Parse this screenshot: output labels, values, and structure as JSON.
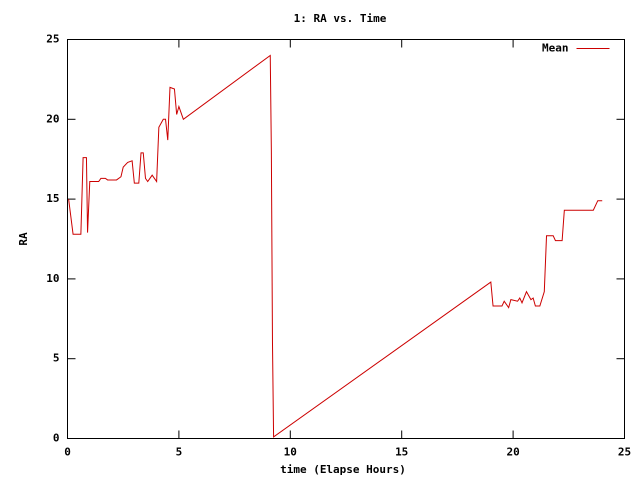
{
  "chart_data": {
    "type": "line",
    "title": "1: RA vs. Time",
    "x_label": "time (Elapse Hours)",
    "y_label": "RA",
    "x": [
      0.05,
      0.25,
      0.6,
      0.7,
      0.85,
      0.9,
      1.0,
      1.4,
      1.5,
      1.7,
      1.8,
      2.2,
      2.4,
      2.5,
      2.7,
      2.9,
      3.0,
      3.2,
      3.3,
      3.4,
      3.5,
      3.6,
      3.8,
      4.0,
      4.1,
      4.3,
      4.4,
      4.5,
      4.6,
      4.8,
      4.9,
      5.0,
      5.2,
      9.1,
      9.15,
      9.2,
      9.25,
      19.0,
      19.1,
      19.5,
      19.6,
      19.8,
      19.9,
      20.2,
      20.3,
      20.4,
      20.6,
      20.8,
      20.9,
      21.0,
      21.2,
      21.4,
      21.5,
      21.8,
      21.9,
      22.2,
      22.3,
      23.6,
      23.8,
      24.0
    ],
    "series": [
      {
        "name": "Mean",
        "color": "#cc0000",
        "values": [
          15,
          12.8,
          12.8,
          17.6,
          17.6,
          12.9,
          16.1,
          16.1,
          16.3,
          16.3,
          16.2,
          16.2,
          16.4,
          17.0,
          17.3,
          17.4,
          16.0,
          16.0,
          17.9,
          17.9,
          16.3,
          16.1,
          16.5,
          16.1,
          19.5,
          20.0,
          20.0,
          18.7,
          22.0,
          21.9,
          20.3,
          20.8,
          20.0,
          24.0,
          18,
          6,
          0.1,
          9.8,
          8.3,
          8.3,
          8.6,
          8.2,
          8.7,
          8.6,
          8.8,
          8.5,
          9.2,
          8.7,
          8.8,
          8.3,
          8.3,
          9.2,
          12.7,
          12.7,
          12.4,
          12.4,
          14.3,
          14.3,
          14.9,
          14.9
        ]
      }
    ],
    "xlim": [
      0,
      25
    ],
    "xticks": [
      0,
      5,
      10,
      15,
      20,
      25
    ],
    "ylim": [
      0,
      25
    ],
    "yticks": [
      0,
      5,
      10,
      15,
      20,
      25
    ],
    "legend": "top-right"
  }
}
